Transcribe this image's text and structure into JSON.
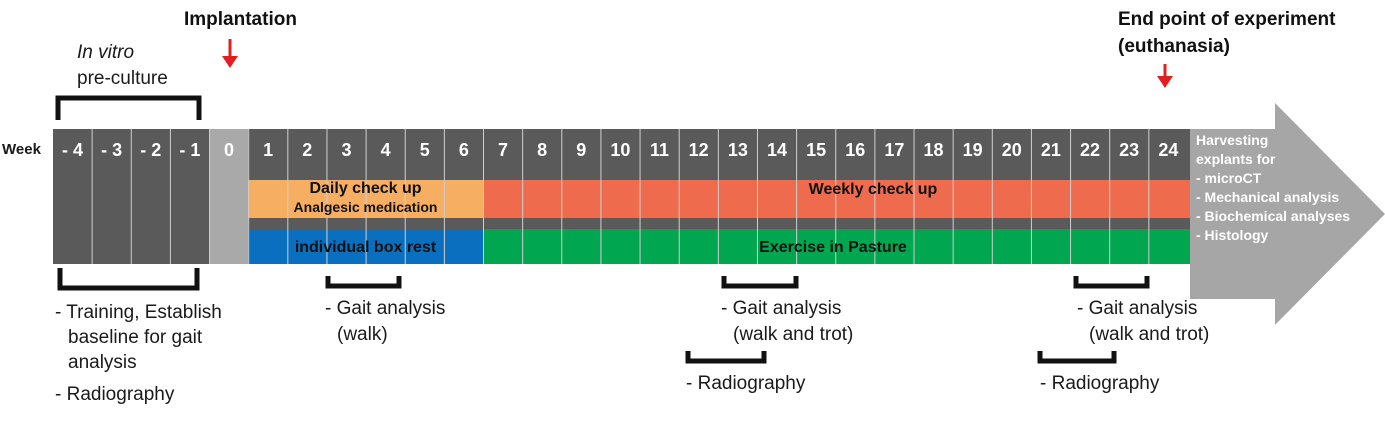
{
  "headers": {
    "week": "Week",
    "implantation": "Implantation",
    "end_point_line1": "End point of experiment",
    "end_point_line2": "(euthanasia)"
  },
  "preculture": {
    "italic": "In vitro",
    "text": "pre-culture"
  },
  "weeks": [
    "- 4",
    "- 3",
    "- 2",
    "- 1",
    "0",
    "1",
    "2",
    "3",
    "4",
    "5",
    "6",
    "7",
    "8",
    "9",
    "10",
    "11",
    "12",
    "13",
    "14",
    "15",
    "16",
    "17",
    "18",
    "19",
    "20",
    "21",
    "22",
    "23",
    "24"
  ],
  "bands": {
    "daily_check": "Daily check up",
    "analgesic": "Analgesic medication",
    "weekly_check": "Weekly check up",
    "box_rest": "individual box rest",
    "pasture": "Exercise in Pasture"
  },
  "harvest": {
    "title1": "Harvesting",
    "title2": "explants for",
    "items": [
      "- microCT",
      "- Mechanical analysis",
      "- Biochemical analyses",
      "- Histology"
    ]
  },
  "annotations": {
    "baseline1": "- Training, Establish",
    "baseline2": "baseline for gait",
    "baseline3": "analysis",
    "baseline_radio": "- Radiography",
    "gait1_a": "- Gait analysis",
    "gait1_b": "(walk)",
    "gait2_a": "- Gait analysis",
    "gait2_b": "(walk and trot)",
    "radio2": "- Radiography",
    "gait3_a": "- Gait analysis",
    "gait3_b": "(walk and trot)",
    "radio3": "- Radiography"
  },
  "colors": {
    "dark_cell": "#5a5a5a",
    "week0_cell": "#a9a9a9",
    "arrow": "#a6a6a6",
    "orange": "#f6ae62",
    "red_orange": "#ee6c4d",
    "blue": "#0b6fc0",
    "green": "#00a650",
    "marker_red": "#e02020"
  }
}
